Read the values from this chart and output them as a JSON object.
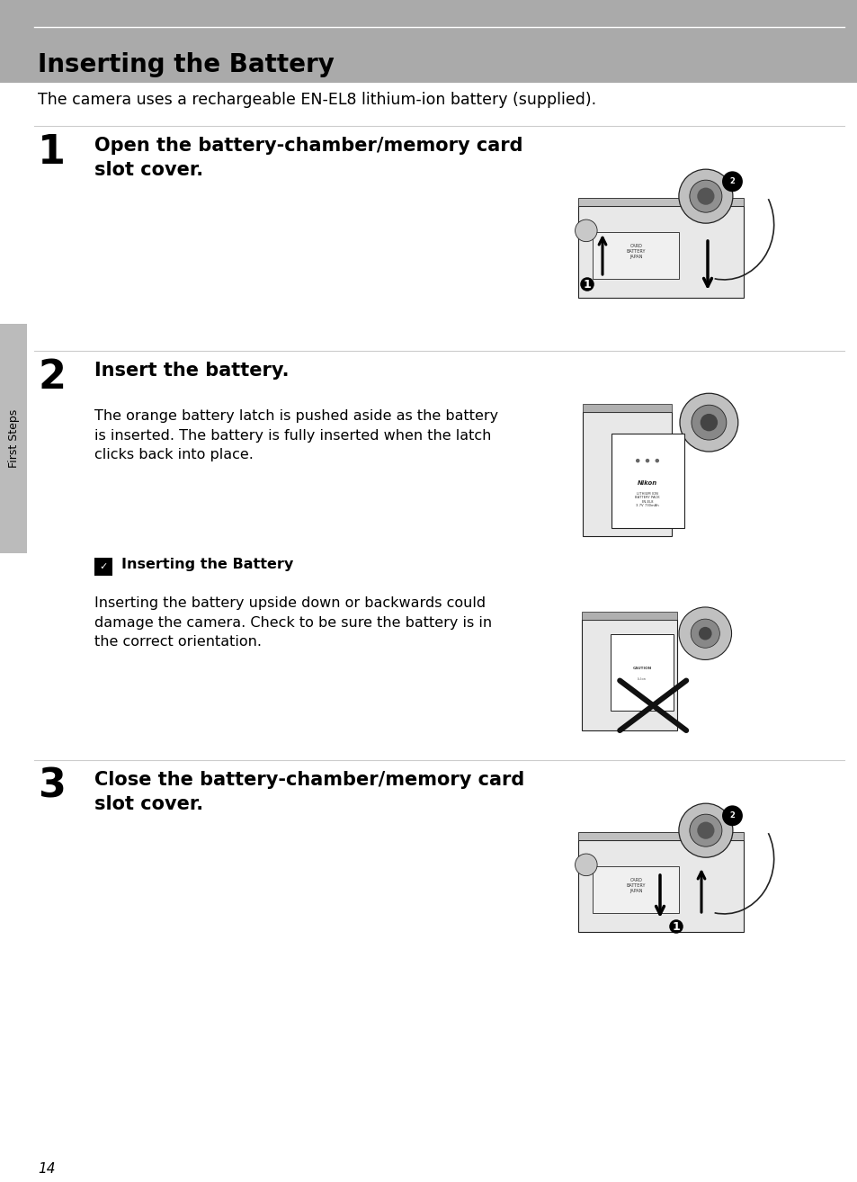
{
  "bg_color": "#ffffff",
  "header_bg_color": "#aaaaaa",
  "header_line_color": "#ffffff",
  "header_title": "Inserting the Battery",
  "header_title_fontsize": 20,
  "intro_text": "The camera uses a rechargeable EN-EL8 lithium-ion battery (supplied).",
  "intro_fontsize": 12.5,
  "page_number": "14",
  "page_number_fontsize": 11,
  "sidebar_text": "First Steps",
  "sidebar_color": "#bbbbbb",
  "step1_number": "1",
  "step1_heading": "Open the battery-chamber/memory card\nslot cover.",
  "step1_heading_fontsize": 15,
  "step2_number": "2",
  "step2_heading": "Insert the battery.",
  "step2_heading_fontsize": 15,
  "step2_body": "The orange battery latch is pushed aside as the battery\nis inserted. The battery is fully inserted when the latch\nclicks back into place.",
  "step2_body_fontsize": 11.5,
  "note_icon_color": "#1a1a1a",
  "note_title": "Inserting the Battery",
  "note_title_fontsize": 11.5,
  "note_body": "Inserting the battery upside down or backwards could\ndamage the camera. Check to be sure the battery is in\nthe correct orientation.",
  "note_body_fontsize": 11.5,
  "step3_number": "3",
  "step3_heading": "Close the battery-chamber/memory card\nslot cover.",
  "step3_heading_fontsize": 15,
  "divider_color": "#cccccc",
  "text_color": "#000000",
  "number_fontsize": 32,
  "image_bg": "#d8d8d8",
  "image_border": "#000000",
  "cam_line_color": "#222222",
  "cam_fill": "#e8e8e8",
  "arrow_color": "#111111",
  "x_mark_color": "#111111"
}
